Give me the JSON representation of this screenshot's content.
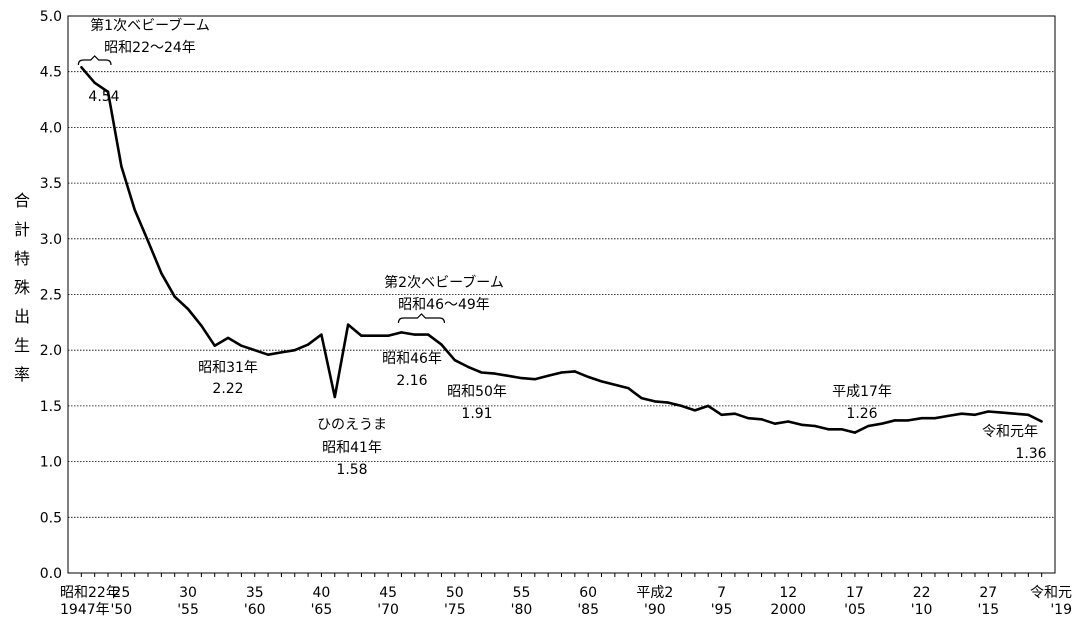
{
  "chart_data": {
    "type": "line",
    "ylabel": "合計特殊出生率",
    "ylim": [
      0,
      5
    ],
    "grid": true,
    "y_ticks": [
      "0.0",
      "0.5",
      "1.0",
      "1.5",
      "2.0",
      "2.5",
      "3.0",
      "3.5",
      "4.0",
      "4.5",
      "5.0"
    ],
    "x_tick_labels": [
      {
        "year": 1947,
        "line1": "昭和22年",
        "line2": "1947年"
      },
      {
        "year": 1950,
        "line1": "25",
        "line2": "'50"
      },
      {
        "year": 1955,
        "line1": "30",
        "line2": "'55"
      },
      {
        "year": 1960,
        "line1": "35",
        "line2": "'60"
      },
      {
        "year": 1965,
        "line1": "40",
        "line2": "'65"
      },
      {
        "year": 1970,
        "line1": "45",
        "line2": "'70"
      },
      {
        "year": 1975,
        "line1": "50",
        "line2": "'75"
      },
      {
        "year": 1980,
        "line1": "55",
        "line2": "'80"
      },
      {
        "year": 1985,
        "line1": "60",
        "line2": "'85"
      },
      {
        "year": 1990,
        "line1": "平成2",
        "line2": "'90"
      },
      {
        "year": 1995,
        "line1": "7",
        "line2": "'95"
      },
      {
        "year": 2000,
        "line1": "12",
        "line2": "2000"
      },
      {
        "year": 2005,
        "line1": "17",
        "line2": "'05"
      },
      {
        "year": 2010,
        "line1": "22",
        "line2": "'10"
      },
      {
        "year": 2015,
        "line1": "27",
        "line2": "'15"
      },
      {
        "year": 2019,
        "line1": "令和元",
        "line2": "'19"
      }
    ],
    "series": [
      {
        "x": [
          1947,
          1948,
          1949,
          1950,
          1951,
          1952,
          1953,
          1954,
          1955,
          1956,
          1957,
          1958,
          1959,
          1960,
          1961,
          1962,
          1963,
          1964,
          1965,
          1966,
          1967,
          1968,
          1969,
          1970,
          1971,
          1972,
          1973,
          1974,
          1975,
          1976,
          1977,
          1978,
          1979,
          1980,
          1981,
          1982,
          1983,
          1984,
          1985,
          1986,
          1987,
          1988,
          1989,
          1990,
          1991,
          1992,
          1993,
          1994,
          1995,
          1996,
          1997,
          1998,
          1999,
          2000,
          2001,
          2002,
          2003,
          2004,
          2005,
          2006,
          2007,
          2008,
          2009,
          2010,
          2011,
          2012,
          2013,
          2014,
          2015,
          2016,
          2017,
          2018,
          2019
        ],
        "y": [
          4.54,
          4.4,
          4.32,
          3.65,
          3.26,
          2.98,
          2.69,
          2.48,
          2.37,
          2.22,
          2.04,
          2.11,
          2.04,
          2.0,
          1.96,
          1.98,
          2.0,
          2.05,
          2.14,
          1.58,
          2.23,
          2.13,
          2.13,
          2.13,
          2.16,
          2.14,
          2.14,
          2.05,
          1.91,
          1.85,
          1.8,
          1.79,
          1.77,
          1.75,
          1.74,
          1.77,
          1.8,
          1.81,
          1.76,
          1.72,
          1.69,
          1.66,
          1.57,
          1.54,
          1.53,
          1.5,
          1.46,
          1.5,
          1.42,
          1.43,
          1.39,
          1.38,
          1.34,
          1.36,
          1.33,
          1.32,
          1.29,
          1.29,
          1.26,
          1.32,
          1.34,
          1.37,
          1.37,
          1.39,
          1.39,
          1.41,
          1.43,
          1.42,
          1.45,
          1.44,
          1.43,
          1.42,
          1.36
        ]
      }
    ],
    "annotations": [
      {
        "id": "boom1-title",
        "year": 1948,
        "value": 5.0,
        "text": "第1次ベビーブーム"
      },
      {
        "id": "boom1-years",
        "year": 1948,
        "value": 5.0,
        "text": "昭和22〜24年"
      },
      {
        "id": "v1947",
        "year": 1947,
        "value": 4.54,
        "text": "4.54"
      },
      {
        "id": "s31-label",
        "year": 1956,
        "value": 2.22,
        "text": "昭和31年"
      },
      {
        "id": "s31-value",
        "year": 1956,
        "value": 2.22,
        "text": "2.22"
      },
      {
        "id": "hinoe-label",
        "year": 1966,
        "value": 1.58,
        "text": "ひのえうま"
      },
      {
        "id": "s41-label",
        "year": 1966,
        "value": 1.58,
        "text": "昭和41年"
      },
      {
        "id": "s41-value",
        "year": 1966,
        "value": 1.58,
        "text": "1.58"
      },
      {
        "id": "boom2-title",
        "year": 1972.5,
        "value": 2.16,
        "text": "第2次ベビーブーム"
      },
      {
        "id": "boom2-years",
        "year": 1972.5,
        "value": 2.16,
        "text": "昭和46〜49年"
      },
      {
        "id": "s46-label",
        "year": 1971,
        "value": 2.16,
        "text": "昭和46年"
      },
      {
        "id": "s46-value",
        "year": 1971,
        "value": 2.16,
        "text": "2.16"
      },
      {
        "id": "s50-label",
        "year": 1975,
        "value": 1.91,
        "text": "昭和50年"
      },
      {
        "id": "s50-value",
        "year": 1975,
        "value": 1.91,
        "text": "1.91"
      },
      {
        "id": "h17-label",
        "year": 2005,
        "value": 1.26,
        "text": "平成17年"
      },
      {
        "id": "h17-value",
        "year": 2005,
        "value": 1.26,
        "text": "1.26"
      },
      {
        "id": "r1-label",
        "year": 2019,
        "value": 1.36,
        "text": "令和元年"
      },
      {
        "id": "r1-value",
        "year": 2019,
        "value": 1.36,
        "text": "1.36"
      }
    ],
    "brackets": [
      {
        "id": "boom1-bracket",
        "from": 1947,
        "to": 1949
      },
      {
        "id": "boom2-bracket",
        "from": 1971,
        "to": 1974
      }
    ]
  }
}
